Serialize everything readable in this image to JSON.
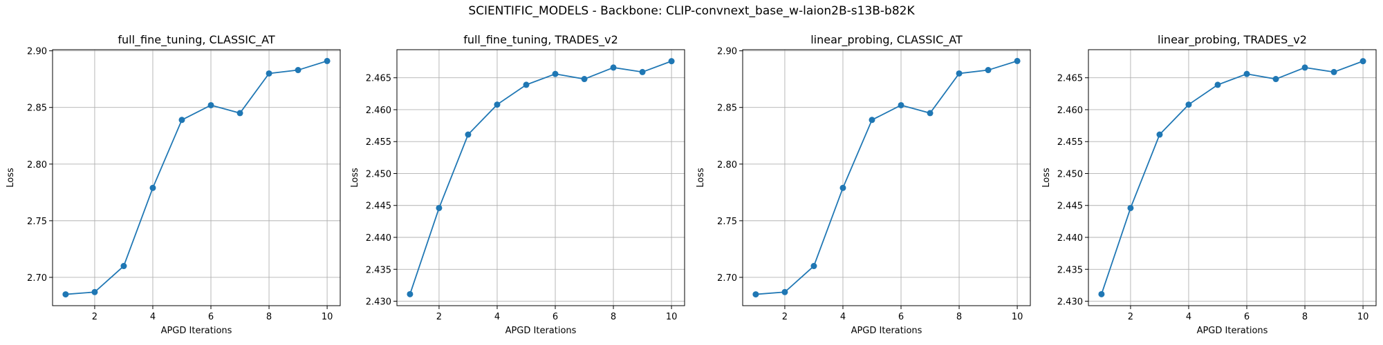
{
  "figure": {
    "suptitle": "SCIENTIFIC_MODELS - Backbone: CLIP-convnext_base_w-laion2B-s13B-b82K"
  },
  "colors": {
    "line": "#1f77b4",
    "grid": "#b0b0b0",
    "axis": "#000000"
  },
  "chart_data": [
    {
      "type": "line",
      "title": "full_fine_tuning, CLASSIC_AT",
      "xlabel": "APGD Iterations",
      "ylabel": "Loss",
      "grid": true,
      "marker": "circle",
      "x": [
        1,
        2,
        3,
        4,
        5,
        6,
        7,
        8,
        9,
        10
      ],
      "y": [
        2.685,
        2.687,
        2.71,
        2.779,
        2.839,
        2.852,
        2.845,
        2.88,
        2.883,
        2.891
      ],
      "xlim": [
        0.55,
        10.45
      ],
      "ylim": [
        2.675,
        2.901
      ],
      "xticks": [
        2,
        4,
        6,
        8,
        10
      ],
      "xtick_labels": [
        "2",
        "4",
        "6",
        "8",
        "10"
      ],
      "yticks": [
        2.7,
        2.75,
        2.8,
        2.85,
        2.9
      ],
      "ytick_labels": [
        "2.70",
        "2.75",
        "2.80",
        "2.85",
        "2.90"
      ]
    },
    {
      "type": "line",
      "title": "full_fine_tuning, TRADES_v2",
      "xlabel": "APGD Iterations",
      "ylabel": "Loss",
      "grid": true,
      "marker": "circle",
      "x": [
        1,
        2,
        3,
        4,
        5,
        6,
        7,
        8,
        9,
        10
      ],
      "y": [
        2.4311,
        2.4446,
        2.4561,
        2.4608,
        2.4639,
        2.4656,
        2.4648,
        2.4666,
        2.4659,
        2.4676
      ],
      "xlim": [
        0.55,
        10.45
      ],
      "ylim": [
        2.4293,
        2.4694
      ],
      "xticks": [
        2,
        4,
        6,
        8,
        10
      ],
      "xtick_labels": [
        "2",
        "4",
        "6",
        "8",
        "10"
      ],
      "yticks": [
        2.43,
        2.435,
        2.44,
        2.445,
        2.45,
        2.455,
        2.46,
        2.465
      ],
      "ytick_labels": [
        "2.430",
        "2.435",
        "2.440",
        "2.445",
        "2.450",
        "2.455",
        "2.460",
        "2.465"
      ]
    },
    {
      "type": "line",
      "title": "linear_probing, CLASSIC_AT",
      "xlabel": "APGD Iterations",
      "ylabel": "Loss",
      "grid": true,
      "marker": "circle",
      "x": [
        1,
        2,
        3,
        4,
        5,
        6,
        7,
        8,
        9,
        10
      ],
      "y": [
        2.685,
        2.687,
        2.71,
        2.779,
        2.839,
        2.852,
        2.845,
        2.88,
        2.883,
        2.891
      ],
      "xlim": [
        0.55,
        10.45
      ],
      "ylim": [
        2.675,
        2.901
      ],
      "xticks": [
        2,
        4,
        6,
        8,
        10
      ],
      "xtick_labels": [
        "2",
        "4",
        "6",
        "8",
        "10"
      ],
      "yticks": [
        2.7,
        2.75,
        2.8,
        2.85,
        2.9
      ],
      "ytick_labels": [
        "2.70",
        "2.75",
        "2.80",
        "2.85",
        "2.90"
      ]
    },
    {
      "type": "line",
      "title": "linear_probing, TRADES_v2",
      "xlabel": "APGD Iterations",
      "ylabel": "Loss",
      "grid": true,
      "marker": "circle",
      "x": [
        1,
        2,
        3,
        4,
        5,
        6,
        7,
        8,
        9,
        10
      ],
      "y": [
        2.4311,
        2.4446,
        2.4561,
        2.4608,
        2.4639,
        2.4656,
        2.4648,
        2.4666,
        2.4659,
        2.4676
      ],
      "xlim": [
        0.55,
        10.45
      ],
      "ylim": [
        2.4293,
        2.4694
      ],
      "xticks": [
        2,
        4,
        6,
        8,
        10
      ],
      "xtick_labels": [
        "2",
        "4",
        "6",
        "8",
        "10"
      ],
      "yticks": [
        2.43,
        2.435,
        2.44,
        2.445,
        2.45,
        2.455,
        2.46,
        2.465
      ],
      "ytick_labels": [
        "2.430",
        "2.435",
        "2.440",
        "2.445",
        "2.450",
        "2.455",
        "2.460",
        "2.465"
      ]
    }
  ]
}
